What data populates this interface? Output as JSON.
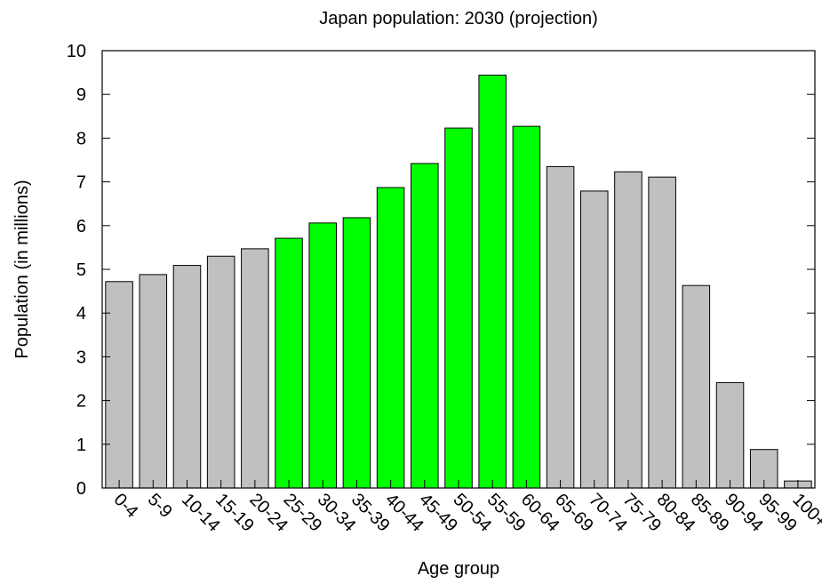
{
  "chart_data": {
    "type": "bar",
    "title": "Japan population: 2030 (projection)",
    "xlabel": "Age group",
    "ylabel": "Population (in millions)",
    "ylim": [
      0,
      10
    ],
    "yticks": [
      0,
      1,
      2,
      3,
      4,
      5,
      6,
      7,
      8,
      9,
      10
    ],
    "grid": false,
    "categories": [
      "0-4",
      "5-9",
      "10-14",
      "15-19",
      "20-24",
      "25-29",
      "30-34",
      "35-39",
      "40-44",
      "45-49",
      "50-54",
      "55-59",
      "60-64",
      "65-69",
      "70-74",
      "75-79",
      "80-84",
      "85-89",
      "90-94",
      "95-99",
      "100+"
    ],
    "values": [
      4.72,
      4.88,
      5.09,
      5.3,
      5.47,
      5.71,
      6.06,
      6.18,
      6.87,
      7.42,
      8.23,
      9.44,
      8.27,
      7.35,
      6.79,
      7.23,
      7.11,
      4.63,
      2.41,
      0.88,
      0.16
    ],
    "highlight_range": [
      "25-29",
      "60-64"
    ],
    "colors": {
      "default_bar": "#c0c0c0",
      "highlight_bar": "#00ff00",
      "bar_outline": "#000000"
    }
  }
}
